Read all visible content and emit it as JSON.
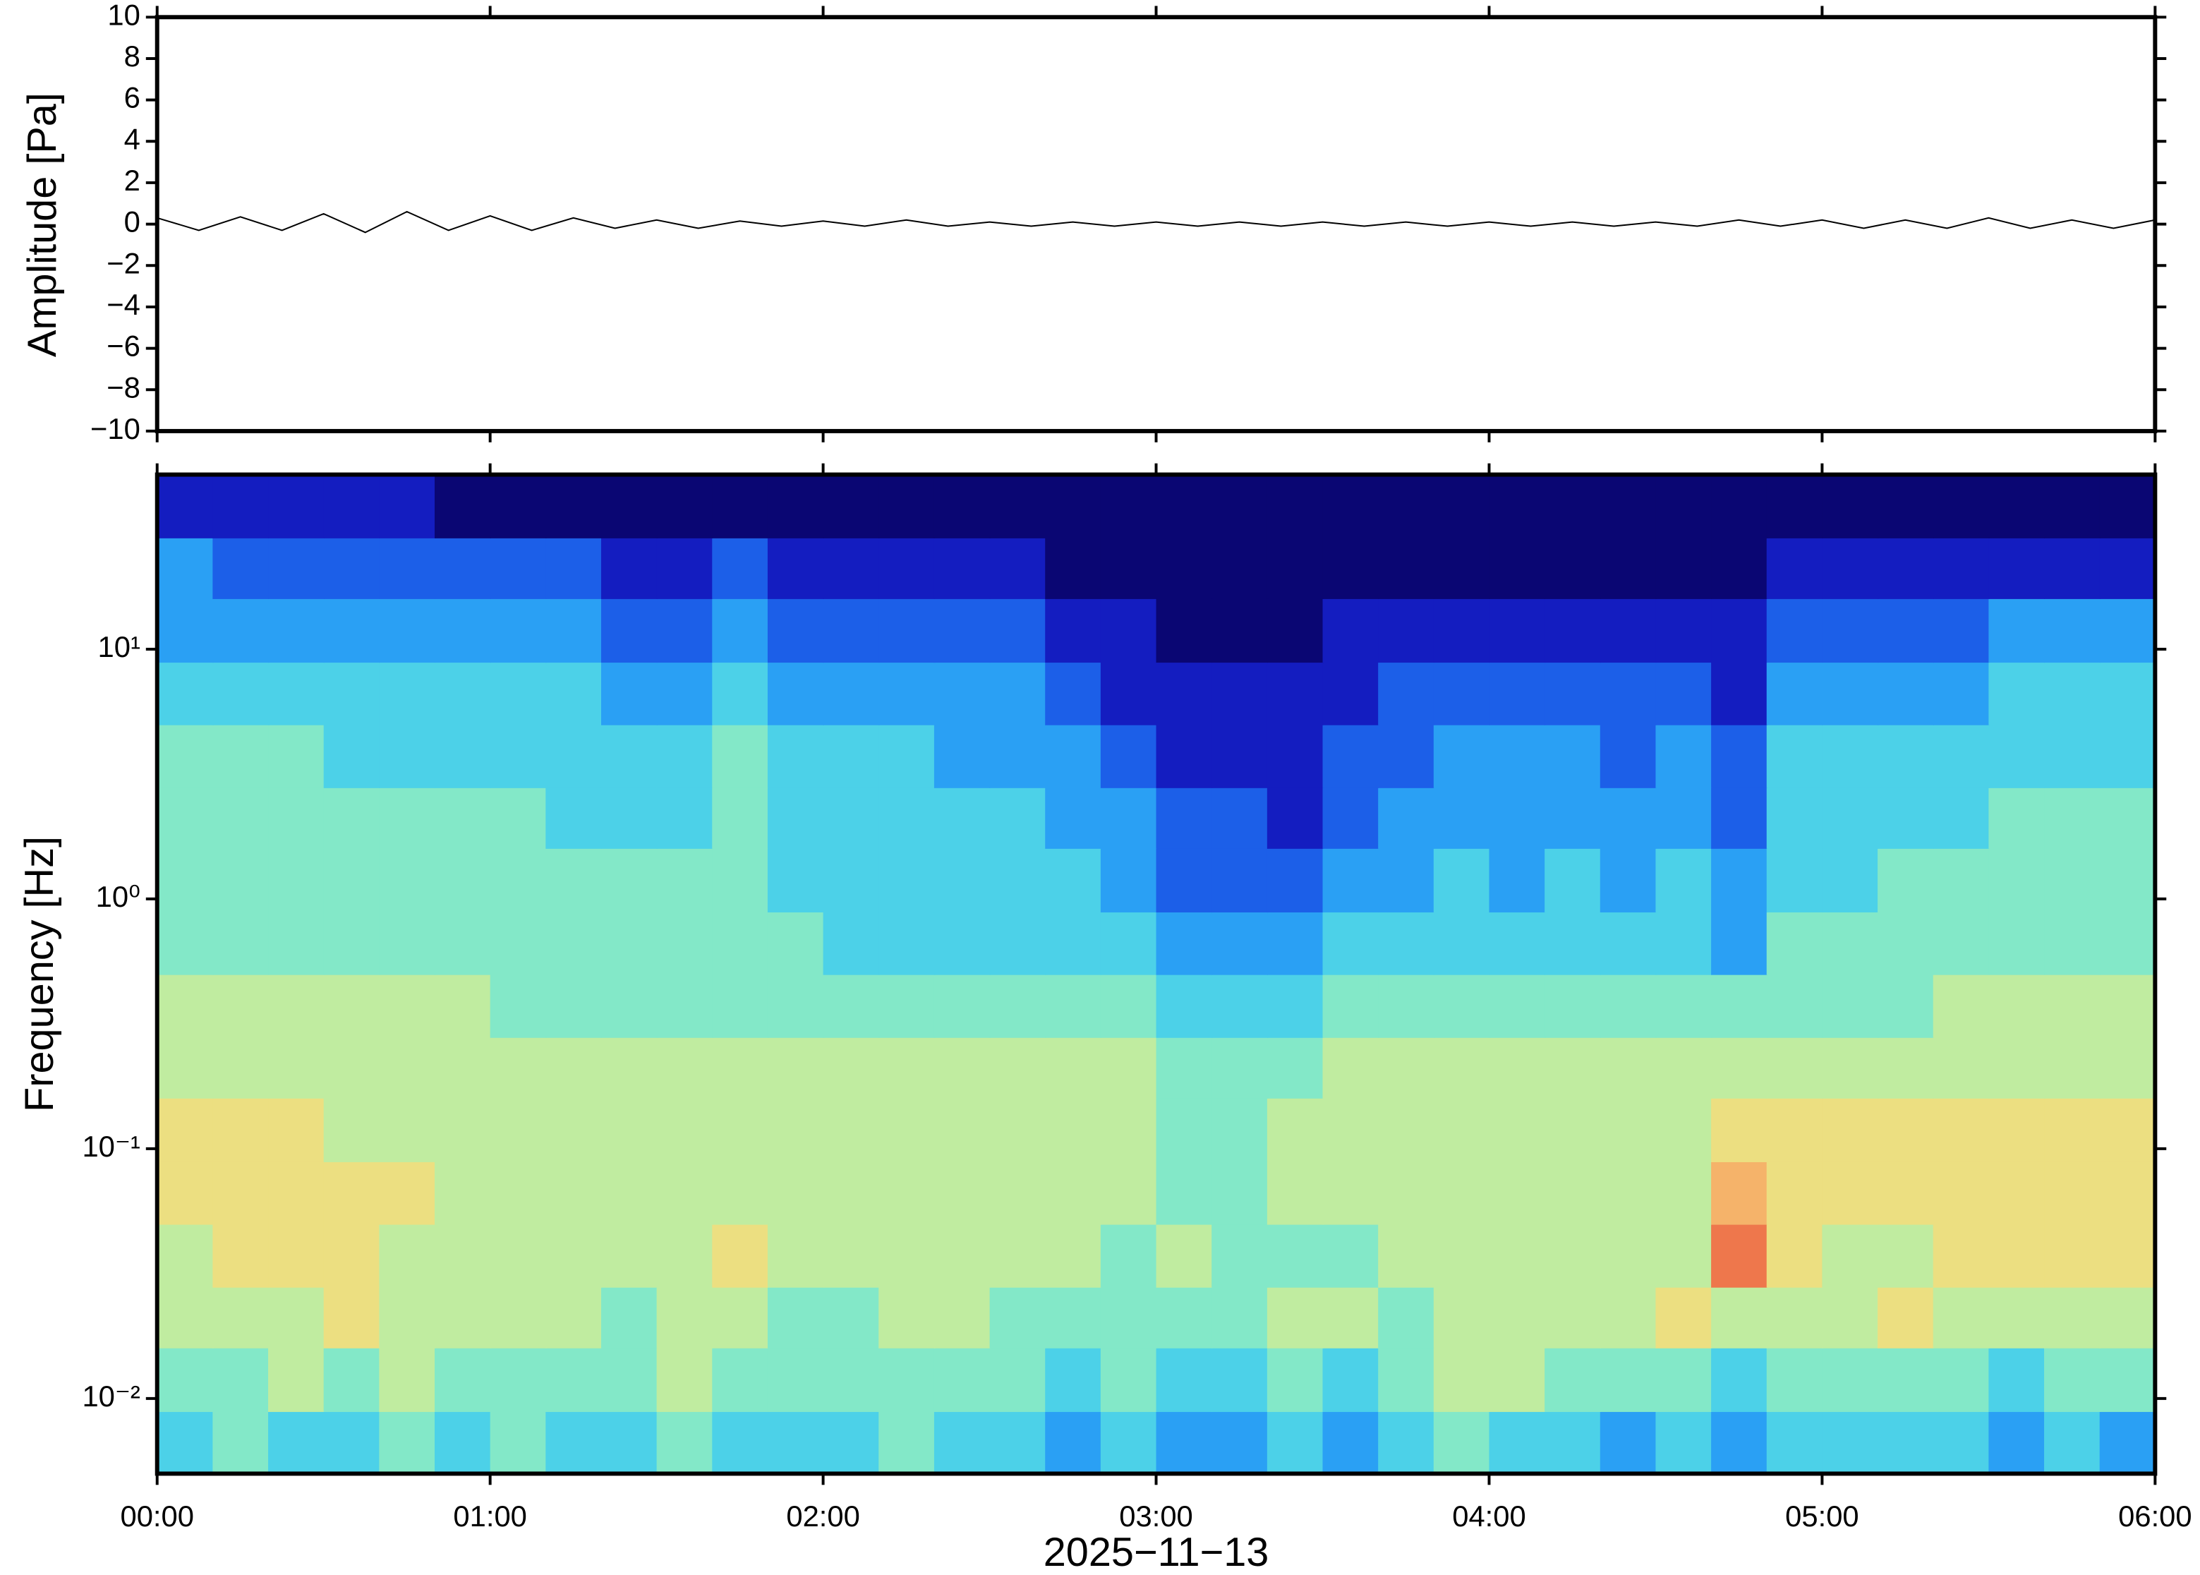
{
  "chart_data": [
    {
      "type": "line",
      "ylabel": "Amplitude [Pa]",
      "color": "#000000",
      "xlim": [
        0,
        360
      ],
      "x": [
        0,
        7.5,
        15,
        22.5,
        30,
        37.5,
        45,
        52.5,
        60,
        67.5,
        75,
        82.5,
        90,
        97.5,
        105,
        112.5,
        120,
        127.5,
        135,
        142.5,
        150,
        157.5,
        165,
        172.5,
        180,
        187.5,
        195,
        202.5,
        210,
        217.5,
        225,
        232.5,
        240,
        247.5,
        255,
        262.5,
        270,
        277.5,
        285,
        292.5,
        300,
        307.5,
        315,
        322.5,
        330,
        337.5,
        345,
        352.5,
        360
      ],
      "values": [
        0.3,
        -0.3,
        0.35,
        -0.3,
        0.5,
        -0.4,
        0.6,
        -0.3,
        0.4,
        -0.3,
        0.3,
        -0.2,
        0.2,
        -0.2,
        0.15,
        -0.1,
        0.15,
        -0.1,
        0.2,
        -0.1,
        0.1,
        -0.1,
        0.1,
        -0.1,
        0.1,
        -0.1,
        0.1,
        -0.1,
        0.1,
        -0.1,
        0.1,
        -0.1,
        0.1,
        -0.1,
        0.1,
        -0.1,
        0.1,
        -0.1,
        0.2,
        -0.1,
        0.2,
        -0.2,
        0.2,
        -0.2,
        0.3,
        -0.2,
        0.2,
        -0.2,
        0.2
      ],
      "ylim": [
        -10,
        10
      ],
      "yticks": [
        {
          "value": -10,
          "label": "−10"
        },
        {
          "value": -8,
          "label": "−8"
        },
        {
          "value": -6,
          "label": "−6"
        },
        {
          "value": -4,
          "label": "−4"
        },
        {
          "value": -2,
          "label": "−2"
        },
        0,
        2,
        4,
        6,
        8,
        10
      ]
    },
    {
      "type": "heatmap",
      "ylabel": "Frequency [Hz]",
      "xlabel": "2025−11−13",
      "log": true,
      "xlim": [
        0,
        360
      ],
      "xticks": [
        {
          "value": 0,
          "label": "00:00"
        },
        {
          "value": 60,
          "label": "01:00"
        },
        {
          "value": 120,
          "label": "02:00"
        },
        {
          "value": 180,
          "label": "03:00"
        },
        {
          "value": 240,
          "label": "04:00"
        },
        {
          "value": 300,
          "label": "05:00"
        },
        {
          "value": 360,
          "label": "06:00"
        }
      ],
      "ylim": [
        0.005,
        50
      ],
      "yticks": [
        {
          "value": 0.01,
          "label": "10⁻²"
        },
        {
          "value": 0.1,
          "label": "10⁻¹"
        },
        {
          "value": 1,
          "label": "10⁰"
        },
        {
          "value": 10,
          "label": "10¹"
        }
      ],
      "zlim": [
        0,
        10
      ],
      "colors": [
        "#0a0673",
        "#1520c8",
        "#1e6ff0",
        "#2fb5f5",
        "#60e4e0",
        "#a6ecb0",
        "#e8ec88",
        "#f6c070",
        "#ef8050",
        "#e02a2a"
      ],
      "xbins": [
        0,
        10,
        20,
        30,
        40,
        50,
        60,
        70,
        80,
        90,
        100,
        110,
        120,
        130,
        140,
        150,
        160,
        170,
        180,
        190,
        200,
        210,
        220,
        230,
        240,
        250,
        260,
        270,
        280,
        290,
        300,
        310,
        320,
        330,
        340,
        350,
        360
      ],
      "ybins": [
        0.005,
        0.0089,
        0.016,
        0.028,
        0.05,
        0.089,
        0.16,
        0.28,
        0.5,
        0.89,
        1.6,
        2.8,
        5,
        8.9,
        16,
        28,
        50
      ],
      "z": [
        [
          4,
          5,
          4,
          4,
          5,
          4,
          5,
          4,
          4,
          5,
          4,
          4,
          4,
          5,
          4,
          4,
          3,
          4,
          3,
          3,
          4,
          3,
          4,
          5,
          4,
          4,
          3,
          4,
          3,
          4,
          4,
          4,
          4,
          3,
          4,
          3
        ],
        [
          5,
          5,
          6,
          5,
          6,
          5,
          5,
          5,
          5,
          6,
          5,
          5,
          5,
          5,
          5,
          5,
          4,
          5,
          4,
          4,
          5,
          4,
          5,
          6,
          6,
          5,
          5,
          5,
          4,
          5,
          5,
          5,
          5,
          4,
          5,
          5
        ],
        [
          6,
          6,
          6,
          7,
          6,
          6,
          6,
          6,
          5,
          6,
          6,
          5,
          5,
          6,
          6,
          5,
          5,
          5,
          5,
          5,
          6,
          6,
          5,
          6,
          6,
          6,
          6,
          7,
          6,
          6,
          6,
          7,
          6,
          6,
          6,
          6
        ],
        [
          6,
          7,
          7,
          7,
          6,
          6,
          6,
          6,
          6,
          6,
          7,
          6,
          6,
          6,
          6,
          6,
          6,
          5,
          6,
          5,
          5,
          5,
          6,
          6,
          6,
          6,
          6,
          6,
          9,
          7,
          6,
          6,
          7,
          7,
          7,
          7
        ],
        [
          7,
          7,
          7,
          7,
          7,
          6,
          6,
          6,
          6,
          6,
          6,
          6,
          6,
          6,
          6,
          6,
          6,
          6,
          5,
          5,
          6,
          6,
          6,
          6,
          6,
          6,
          6,
          6,
          8,
          7,
          7,
          7,
          7,
          7,
          7,
          7
        ],
        [
          7,
          7,
          7,
          6,
          6,
          6,
          6,
          6,
          6,
          6,
          6,
          6,
          6,
          6,
          6,
          6,
          6,
          6,
          5,
          5,
          6,
          6,
          6,
          6,
          6,
          6,
          6,
          6,
          7,
          7,
          7,
          7,
          7,
          7,
          7,
          7
        ],
        [
          6,
          6,
          6,
          6,
          6,
          6,
          6,
          6,
          6,
          6,
          6,
          6,
          6,
          6,
          6,
          6,
          6,
          6,
          5,
          5,
          5,
          6,
          6,
          6,
          6,
          6,
          6,
          6,
          6,
          6,
          6,
          6,
          6,
          6,
          6,
          6
        ],
        [
          6,
          6,
          6,
          6,
          6,
          6,
          5,
          5,
          5,
          5,
          5,
          5,
          5,
          5,
          5,
          5,
          5,
          5,
          4,
          4,
          4,
          5,
          5,
          5,
          5,
          5,
          5,
          5,
          5,
          5,
          5,
          5,
          6,
          6,
          6,
          6
        ],
        [
          5,
          5,
          5,
          5,
          5,
          5,
          5,
          5,
          5,
          5,
          5,
          5,
          4,
          4,
          4,
          4,
          4,
          4,
          3,
          3,
          3,
          4,
          4,
          4,
          4,
          4,
          4,
          4,
          3,
          5,
          5,
          5,
          5,
          5,
          5,
          5
        ],
        [
          5,
          5,
          5,
          5,
          5,
          5,
          5,
          5,
          5,
          5,
          5,
          4,
          4,
          4,
          4,
          4,
          4,
          3,
          2,
          2,
          2,
          3,
          3,
          4,
          3,
          4,
          3,
          4,
          3,
          4,
          4,
          5,
          5,
          5,
          5,
          5
        ],
        [
          5,
          5,
          5,
          5,
          5,
          5,
          5,
          4,
          4,
          4,
          5,
          4,
          4,
          4,
          4,
          4,
          3,
          3,
          2,
          2,
          1,
          2,
          3,
          3,
          3,
          3,
          3,
          3,
          2,
          4,
          4,
          4,
          4,
          5,
          5,
          5
        ],
        [
          5,
          5,
          5,
          4,
          4,
          4,
          4,
          4,
          4,
          4,
          5,
          4,
          4,
          4,
          3,
          3,
          3,
          2,
          1,
          1,
          1,
          2,
          2,
          3,
          3,
          3,
          2,
          3,
          2,
          4,
          4,
          4,
          4,
          4,
          4,
          4
        ],
        [
          4,
          4,
          4,
          4,
          4,
          4,
          4,
          4,
          3,
          3,
          4,
          3,
          3,
          3,
          3,
          3,
          2,
          1,
          1,
          1,
          1,
          1,
          2,
          2,
          2,
          2,
          2,
          2,
          1,
          3,
          3,
          3,
          3,
          4,
          4,
          4
        ],
        [
          3,
          3,
          3,
          3,
          3,
          3,
          3,
          3,
          2,
          2,
          3,
          2,
          2,
          2,
          2,
          2,
          1,
          1,
          0,
          0,
          0,
          1,
          1,
          1,
          1,
          1,
          1,
          1,
          1,
          2,
          2,
          2,
          2,
          3,
          3,
          3
        ],
        [
          3,
          2,
          2,
          2,
          2,
          2,
          2,
          2,
          1,
          1,
          2,
          1,
          1,
          1,
          1,
          1,
          0,
          0,
          0,
          0,
          0,
          0,
          0,
          0,
          0,
          0,
          0,
          0,
          0,
          1,
          1,
          1,
          1,
          1,
          1,
          1
        ],
        [
          1,
          1,
          1,
          1,
          1,
          0,
          0,
          0,
          0,
          0,
          0,
          0,
          0,
          0,
          0,
          0,
          0,
          0,
          0,
          0,
          0,
          0,
          0,
          0,
          0,
          0,
          0,
          0,
          0,
          0,
          0,
          0,
          0,
          0,
          0,
          0
        ]
      ]
    }
  ]
}
